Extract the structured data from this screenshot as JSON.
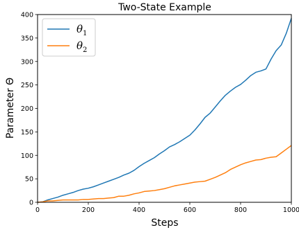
{
  "chart_data": {
    "type": "line",
    "title": "Two-State Example",
    "xlabel": "Steps",
    "ylabel": "Parameter Θ",
    "xlim": [
      0,
      1000
    ],
    "ylim": [
      0,
      400
    ],
    "xticks": [
      0,
      200,
      400,
      600,
      800,
      1000
    ],
    "yticks": [
      0,
      50,
      100,
      150,
      200,
      250,
      300,
      350,
      400
    ],
    "grid": false,
    "legend_position": "top-left",
    "series": [
      {
        "name": "θ1",
        "name_base": "θ",
        "name_sub": "1",
        "color": "#1f77b4",
        "x": [
          20,
          40,
          60,
          80,
          100,
          120,
          140,
          160,
          180,
          200,
          220,
          240,
          260,
          280,
          300,
          320,
          340,
          360,
          380,
          400,
          420,
          440,
          460,
          480,
          500,
          520,
          540,
          560,
          580,
          600,
          620,
          640,
          660,
          680,
          700,
          720,
          740,
          760,
          780,
          800,
          820,
          840,
          860,
          880,
          900,
          920,
          940,
          960,
          980,
          1000
        ],
        "y": [
          1,
          5,
          8,
          11,
          15,
          18,
          21,
          25,
          28,
          30,
          33,
          37,
          41,
          45,
          49,
          53,
          58,
          62,
          68,
          76,
          83,
          89,
          95,
          103,
          110,
          118,
          123,
          129,
          136,
          143,
          154,
          167,
          181,
          190,
          203,
          216,
          228,
          237,
          245,
          251,
          260,
          270,
          277,
          280,
          284,
          305,
          323,
          335,
          360,
          392
        ]
      },
      {
        "name": "θ2",
        "name_base": "θ",
        "name_sub": "2",
        "color": "#ff7f0e",
        "x": [
          20,
          40,
          60,
          80,
          100,
          120,
          140,
          160,
          180,
          200,
          220,
          240,
          260,
          280,
          300,
          320,
          340,
          360,
          380,
          400,
          420,
          440,
          460,
          480,
          500,
          520,
          540,
          560,
          580,
          600,
          620,
          640,
          660,
          680,
          700,
          720,
          740,
          760,
          780,
          800,
          820,
          840,
          860,
          880,
          900,
          920,
          940,
          960,
          980,
          1000
        ],
        "y": [
          1,
          3,
          3,
          4,
          5,
          5,
          5,
          5,
          6,
          6,
          7,
          8,
          8,
          9,
          10,
          13,
          13,
          15,
          18,
          20,
          23,
          24,
          25,
          27,
          29,
          32,
          35,
          37,
          39,
          41,
          43,
          44,
          45,
          49,
          53,
          58,
          63,
          70,
          75,
          80,
          84,
          87,
          90,
          91,
          94,
          96,
          97,
          105,
          113,
          121
        ]
      }
    ]
  }
}
